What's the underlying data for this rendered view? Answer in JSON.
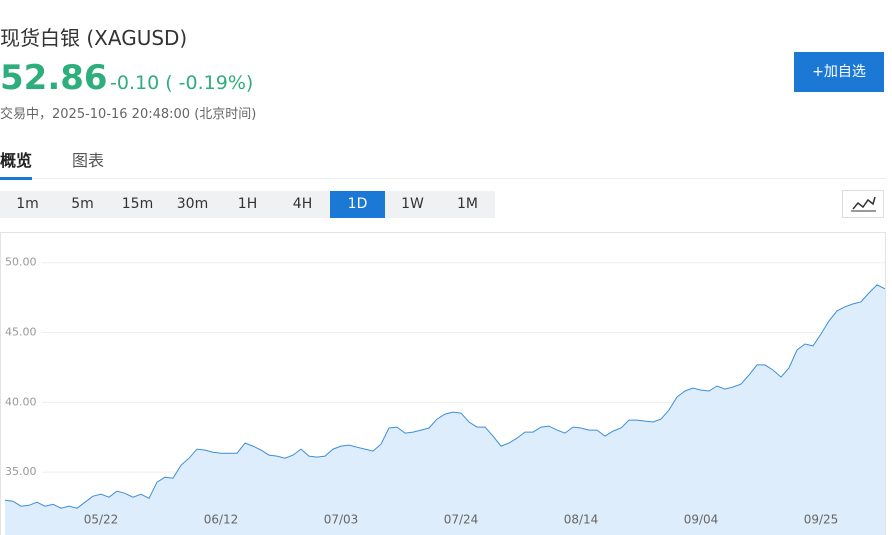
{
  "header": {
    "title": "现货白银 (XAGUSD)",
    "price": "52.86",
    "change": "-0.10 ( -0.19%)",
    "status": "交易中，2025-10-16 20:48:00 (北京时间)",
    "watch_button": "+加自选"
  },
  "tabs": [
    "概览",
    "图表"
  ],
  "intervals": [
    "1m",
    "5m",
    "15m",
    "30m",
    "1H",
    "4H",
    "1D",
    "1W",
    "1M"
  ],
  "active_interval": 6,
  "chart_data": {
    "type": "area",
    "color": "#3d8fd8",
    "fill_color": "#deedfb",
    "grid": true,
    "ylim": [
      30.5,
      52.2
    ],
    "yticks": [
      {
        "value": 35,
        "label": "35.00"
      },
      {
        "value": 40,
        "label": "40.00"
      },
      {
        "value": 45,
        "label": "45.00"
      },
      {
        "value": 50,
        "label": "50.00"
      }
    ],
    "categories": [
      null,
      null,
      null,
      null,
      null,
      null,
      null,
      null,
      null,
      null,
      null,
      null,
      "05/22",
      null,
      null,
      null,
      null,
      null,
      null,
      null,
      null,
      null,
      null,
      null,
      null,
      null,
      null,
      "06/12",
      null,
      null,
      null,
      null,
      null,
      null,
      null,
      null,
      null,
      null,
      null,
      null,
      null,
      null,
      "07/03",
      null,
      null,
      null,
      null,
      null,
      null,
      null,
      null,
      null,
      null,
      null,
      null,
      null,
      null,
      "07/24",
      null,
      null,
      null,
      null,
      null,
      null,
      null,
      null,
      null,
      null,
      null,
      null,
      null,
      null,
      "08/14",
      null,
      null,
      null,
      null,
      null,
      null,
      null,
      null,
      null,
      null,
      null,
      null,
      null,
      null,
      "09/04",
      null,
      null,
      null,
      null,
      null,
      null,
      null,
      null,
      null,
      null,
      null,
      null,
      null,
      null,
      "09/25",
      null,
      null,
      null,
      null,
      null,
      null,
      null,
      null
    ],
    "values": [
      32.99,
      32.92,
      32.56,
      32.63,
      32.85,
      32.56,
      32.7,
      32.42,
      32.56,
      32.42,
      32.85,
      33.28,
      33.42,
      33.21,
      33.64,
      33.49,
      33.21,
      33.42,
      33.13,
      34.28,
      34.64,
      34.57,
      35.5,
      36.0,
      36.65,
      36.58,
      36.43,
      36.36,
      36.36,
      36.36,
      37.08,
      36.87,
      36.58,
      36.22,
      36.15,
      36.0,
      36.22,
      36.65,
      36.15,
      36.08,
      36.15,
      36.65,
      36.87,
      36.94,
      36.79,
      36.65,
      36.51,
      37.01,
      38.16,
      38.23,
      37.8,
      37.87,
      38.01,
      38.16,
      38.8,
      39.16,
      39.3,
      39.23,
      38.59,
      38.23,
      38.23,
      37.58,
      36.87,
      37.08,
      37.44,
      37.87,
      37.87,
      38.23,
      38.3,
      38.01,
      37.8,
      38.23,
      38.16,
      38.01,
      38.01,
      37.58,
      37.94,
      38.16,
      38.73,
      38.73,
      38.66,
      38.59,
      38.8,
      39.45,
      40.38,
      40.81,
      41.03,
      40.88,
      40.81,
      41.17,
      40.95,
      41.1,
      41.31,
      41.96,
      42.68,
      42.68,
      42.32,
      41.81,
      42.46,
      43.75,
      44.18,
      44.04,
      44.9,
      45.83,
      46.55,
      46.84,
      47.05,
      47.2,
      47.84,
      48.41,
      48.13
    ]
  }
}
